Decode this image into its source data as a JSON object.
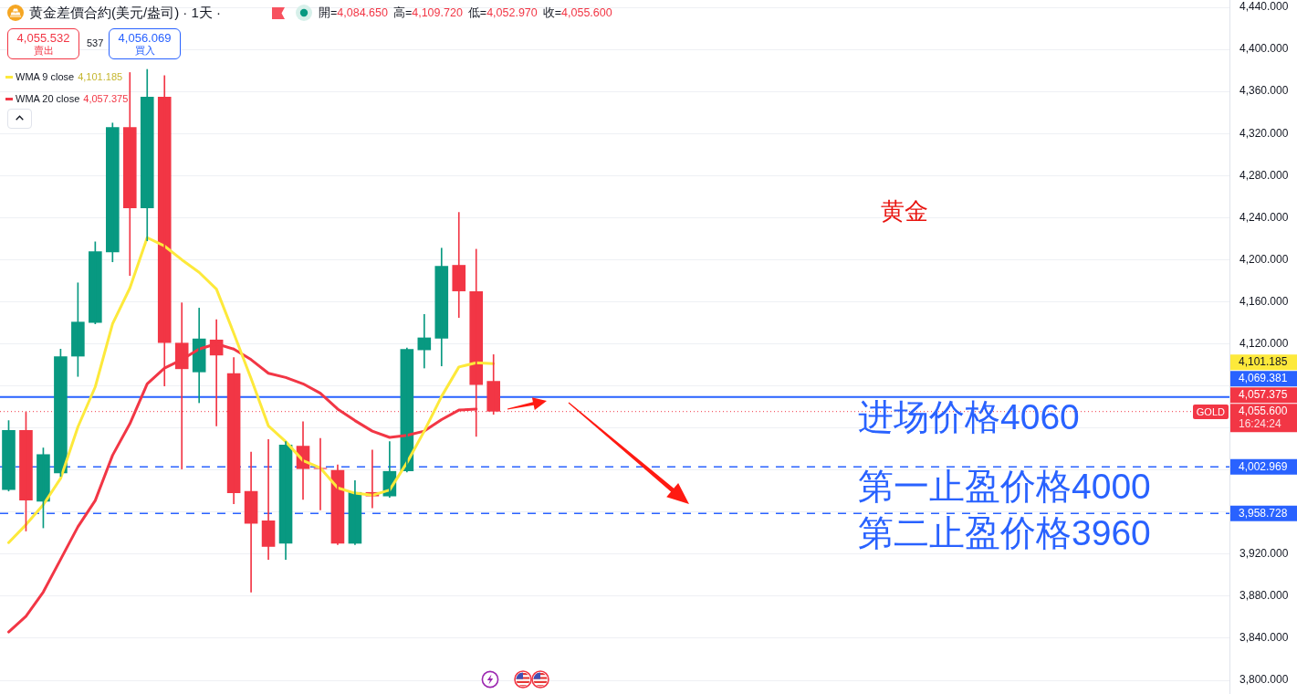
{
  "chart_data": {
    "type": "candlestick",
    "title": "黄金差價合約(美元/盎司) · 1天 ·",
    "subtitle": "開=4,084.650 高=4,109.720 低=4,052.970 收=4,055.600",
    "categories": [
      null,
      null,
      null,
      null,
      null,
      null,
      null,
      null,
      null,
      null,
      null,
      null,
      null,
      null,
      null,
      null,
      null,
      null,
      null,
      null,
      null,
      null,
      null,
      null,
      null,
      null,
      null,
      null,
      null,
      null,
      null,
      null,
      null,
      null,
      null,
      null,
      null,
      null,
      null,
      null,
      null,
      null,
      null,
      null,
      null,
      null,
      null,
      null,
      null,
      null,
      null,
      null,
      null,
      null,
      null,
      null,
      null,
      null,
      null,
      null,
      null,
      null,
      null,
      null,
      null,
      null,
      null,
      null,
      null,
      null,
      null
    ],
    "ohlc": [
      [
        3981,
        4047,
        3980,
        4038
      ],
      [
        4038,
        4055,
        3942,
        3971
      ],
      [
        3970,
        4021,
        3945,
        4015
      ],
      [
        3997,
        4115,
        3994,
        4108
      ],
      [
        4108,
        4178,
        4089,
        4141
      ],
      [
        4140,
        4217,
        4139,
        4208
      ],
      [
        4207,
        4330,
        4198,
        4326
      ],
      [
        4326,
        4378,
        4185,
        4249
      ],
      [
        4249,
        4381,
        4218,
        4355
      ],
      [
        4355,
        4375,
        4080,
        4121
      ],
      [
        4121,
        4159,
        4001,
        4096
      ],
      [
        4093,
        4154,
        4064,
        4125
      ],
      [
        4124,
        4143,
        4042,
        4109
      ],
      [
        4092,
        4107,
        3968,
        3978
      ],
      [
        3980,
        4017,
        3884,
        3949
      ],
      [
        3952,
        4029,
        3915,
        3927
      ],
      [
        3930,
        4027,
        3915,
        4024
      ],
      [
        4023,
        4046,
        3972,
        4001
      ],
      [
        4002,
        4030,
        3962,
        4001
      ],
      [
        4000,
        4005,
        3929,
        3930
      ],
      [
        3930,
        3990,
        3929,
        3979
      ],
      [
        3979,
        4019,
        3964,
        3975
      ],
      [
        3975,
        4027,
        3974,
        3999
      ],
      [
        3999,
        4116,
        3998,
        4115
      ],
      [
        4114,
        4148,
        4097,
        4126
      ],
      [
        4125,
        4211,
        4099,
        4194
      ],
      [
        4195,
        4245,
        4145,
        4170
      ],
      [
        4170,
        4210,
        4032,
        4081
      ],
      [
        4084.65,
        4109.72,
        4052.97,
        4055.6
      ],
      null,
      null,
      null,
      null,
      null,
      null,
      null,
      null,
      null,
      null,
      null,
      null,
      null,
      null,
      null,
      null,
      null,
      null,
      null,
      null,
      null,
      null,
      null,
      null,
      null,
      null,
      null,
      null,
      null,
      null,
      null,
      null,
      null,
      null,
      null,
      null,
      null,
      null,
      null,
      null,
      null,
      null
    ],
    "colors": [
      "#089981",
      "#f23645",
      "#089981",
      "#089981",
      "#089981",
      "#089981",
      "#089981",
      "#f23645",
      "#089981",
      "#f23645",
      "#f23645",
      "#089981",
      "#f23645",
      "#f23645",
      "#f23645",
      "#f23645",
      "#089981",
      "#f23645",
      "#f23645",
      "#f23645",
      "#089981",
      "#f23645",
      "#089981",
      "#089981",
      "#089981",
      "#089981",
      "#f23645",
      "#f23645",
      "#f23645",
      null,
      null,
      null,
      null,
      null,
      null,
      null,
      null,
      null,
      null,
      null,
      null,
      null,
      null,
      null,
      null,
      null,
      null,
      null,
      null,
      null,
      null,
      null,
      null,
      null,
      null,
      null,
      null,
      null,
      null,
      null,
      null,
      null,
      null,
      null,
      null,
      null,
      null,
      null,
      null,
      null,
      null
    ],
    "series": [
      {
        "name": "WMA 9 close",
        "type": "line",
        "color": "#fde93b",
        "values": [
          3931,
          3948,
          3967,
          3992,
          4041,
          4079,
          4139,
          4173,
          4221,
          4213,
          4200,
          4188,
          4172,
          4130,
          4087,
          4042,
          4027,
          4009,
          4002,
          3983,
          3978,
          3976,
          3981,
          4007,
          4037,
          4070,
          4098,
          4102,
          4101.185,
          null,
          null,
          null,
          null,
          null,
          null,
          null,
          null,
          null,
          null,
          null,
          null,
          null,
          null,
          null,
          null,
          null,
          null,
          null,
          null,
          null,
          null,
          null,
          null,
          null,
          null,
          null,
          null,
          null,
          null,
          null,
          null,
          null,
          null,
          null,
          null,
          null,
          null,
          null,
          null,
          null,
          null
        ]
      },
      {
        "name": "WMA 20 close",
        "type": "line",
        "color": "#f23645",
        "values": [
          3846,
          3861,
          3884,
          3915,
          3946,
          3971,
          4014,
          4044,
          4082,
          4097,
          4105,
          4115,
          4120,
          4115,
          4105,
          4092,
          4088,
          4082,
          4073,
          4058,
          4047,
          4037,
          4031,
          4033,
          4037,
          4048,
          4057,
          4058,
          null,
          null,
          null,
          null,
          null,
          null,
          null,
          null,
          null,
          null,
          null,
          null,
          null,
          null,
          null,
          null,
          null,
          null,
          null,
          null,
          null,
          null,
          null,
          null,
          null,
          null,
          null,
          null,
          null,
          null,
          null,
          null,
          null,
          null,
          null,
          null,
          null,
          null,
          null,
          null,
          null,
          null,
          null
        ]
      }
    ],
    "ylim": [
      3787,
      4447
    ],
    "yticks": [
      {
        "value": 4440,
        "label": "4,440.000"
      },
      {
        "value": 4400,
        "label": "4,400.000"
      },
      {
        "value": 4360,
        "label": "4,360.000"
      },
      {
        "value": 4320,
        "label": "4,320.000"
      },
      {
        "value": 4280,
        "label": "4,280.000"
      },
      {
        "value": 4240,
        "label": "4,240.000"
      },
      {
        "value": 4200,
        "label": "4,200.000"
      },
      {
        "value": 4160,
        "label": "4,160.000"
      },
      {
        "value": 4120,
        "label": "4,120.000"
      },
      {
        "value": 4080,
        "label": null
      },
      {
        "value": 4040,
        "label": null
      },
      {
        "value": 4000,
        "label": null
      },
      {
        "value": 3960,
        "label": null
      },
      {
        "value": 3920,
        "label": "3,920.000"
      },
      {
        "value": 3880,
        "label": "3,880.000"
      },
      {
        "value": 3840,
        "label": "3,840.000"
      },
      {
        "value": 3800,
        "label": "3,800.000"
      }
    ],
    "grid": "y",
    "legend": "top left",
    "marker": "none",
    "ref_lines": [
      {
        "axis": "y",
        "value": 4069.381,
        "label": "4,069.381",
        "color": "#2962ff",
        "line_style": "solid"
      },
      {
        "axis": "y",
        "value": 4002.969,
        "label": "4,002.969",
        "color": "#2962ff",
        "line_style": "dashed"
      },
      {
        "axis": "y",
        "value": 3958.728,
        "label": "3,958.728",
        "color": "#2962ff",
        "line_style": "dashed"
      },
      {
        "axis": "y",
        "value": 4055.6,
        "label": "4,055.600",
        "color": "#f23645",
        "line_style": "dotted"
      }
    ],
    "annotations": [
      "黄金",
      {
        "text": "进场价格4060",
        "y": 4069.381
      },
      {
        "text": "第一止盈价格4000",
        "y": 4002.969
      },
      {
        "text": "第二止盈价格3960",
        "y": 3958.728
      },
      "4,055.532",
      "賣出",
      "537",
      "4,056.069",
      "買入",
      {
        "text": "GOLD",
        "y": 4055.6
      },
      "16:24:24",
      "4,101.185",
      "4,057.375",
      "4,101.185",
      "4,057.375"
    ]
  }
}
